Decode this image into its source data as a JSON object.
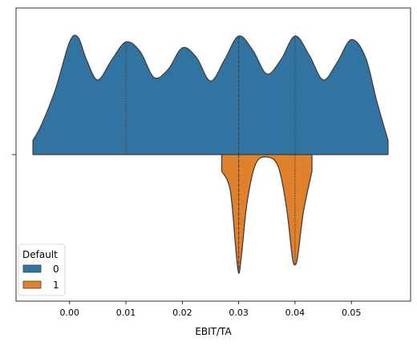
{
  "chart_data": {
    "type": "violin",
    "title": "",
    "xlabel": "EBIT/TA",
    "ylabel": "",
    "xlim": [
      -0.0095,
      0.0605
    ],
    "x_ticks": [
      0.0,
      0.01,
      0.02,
      0.03,
      0.04,
      0.05
    ],
    "x_tick_labels": [
      "0.00",
      "0.01",
      "0.02",
      "0.03",
      "0.04",
      "0.05"
    ],
    "split": true,
    "inner": "quart",
    "grid": false,
    "legend": {
      "title": "Default",
      "placement": "lower-left",
      "entries": [
        {
          "label": "0",
          "color": "#3274a1"
        },
        {
          "label": "1",
          "color": "#e1812c"
        }
      ]
    },
    "series": [
      {
        "name": "0",
        "color": "#3274a1",
        "side": "upper",
        "range": [
          -0.0065,
          0.0565
        ],
        "quartiles": [
          0.01,
          0.03,
          0.04
        ],
        "density": [
          [
            -0.0065,
            0.12
          ],
          [
            -0.005,
            0.25
          ],
          [
            -0.0025,
            0.55
          ],
          [
            0.0,
            0.95
          ],
          [
            0.0015,
            0.99
          ],
          [
            0.003,
            0.8
          ],
          [
            0.005,
            0.63
          ],
          [
            0.0075,
            0.8
          ],
          [
            0.01,
            0.95
          ],
          [
            0.0125,
            0.87
          ],
          [
            0.015,
            0.65
          ],
          [
            0.0175,
            0.72
          ],
          [
            0.02,
            0.9
          ],
          [
            0.0225,
            0.82
          ],
          [
            0.025,
            0.62
          ],
          [
            0.0275,
            0.8
          ],
          [
            0.03,
            1.0
          ],
          [
            0.0325,
            0.88
          ],
          [
            0.035,
            0.68
          ],
          [
            0.0375,
            0.8
          ],
          [
            0.04,
            1.0
          ],
          [
            0.0425,
            0.84
          ],
          [
            0.045,
            0.63
          ],
          [
            0.0475,
            0.78
          ],
          [
            0.05,
            0.97
          ],
          [
            0.0525,
            0.82
          ],
          [
            0.0545,
            0.45
          ],
          [
            0.0565,
            0.12
          ]
        ]
      },
      {
        "name": "1",
        "color": "#e1812c",
        "side": "lower",
        "range": [
          0.027,
          0.043
        ],
        "quartiles": [
          0.03,
          0.03,
          0.04
        ],
        "density": [
          [
            0.027,
            0.14
          ],
          [
            0.0285,
            0.3
          ],
          [
            0.0295,
            0.8
          ],
          [
            0.03,
            1.0
          ],
          [
            0.0305,
            0.85
          ],
          [
            0.0315,
            0.4
          ],
          [
            0.033,
            0.08
          ],
          [
            0.035,
            0.02
          ],
          [
            0.037,
            0.1
          ],
          [
            0.0385,
            0.45
          ],
          [
            0.0395,
            0.86
          ],
          [
            0.04,
            0.93
          ],
          [
            0.0405,
            0.85
          ],
          [
            0.0415,
            0.48
          ],
          [
            0.043,
            0.14
          ]
        ]
      }
    ]
  }
}
